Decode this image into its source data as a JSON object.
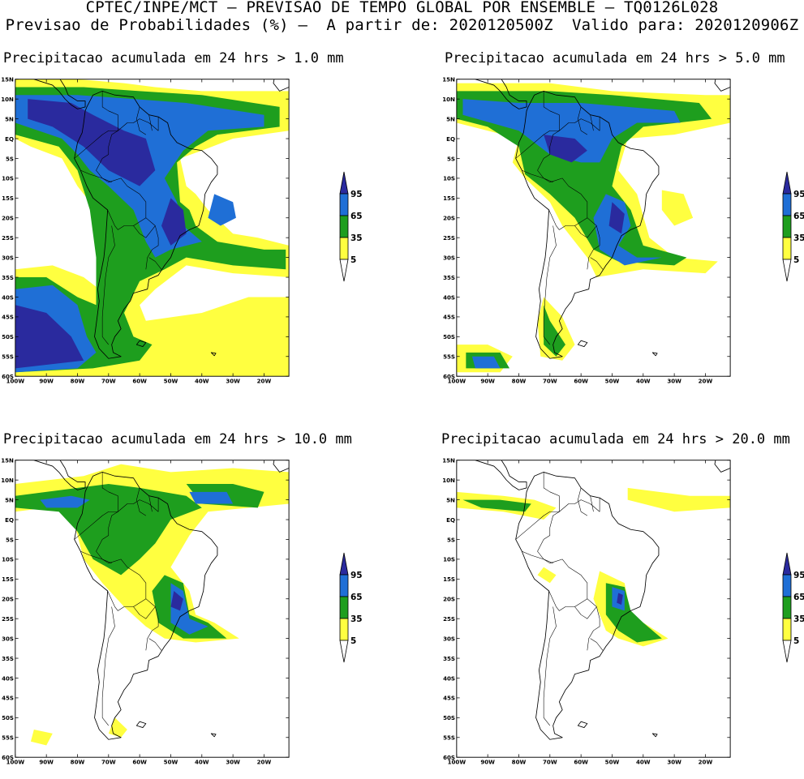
{
  "header": {
    "line1": "CPTEC/INPE/MCT — PREVISAO DE TEMPO GLOBAL POR ENSEMBLE — TQ0126L028",
    "line2": "Previsao de Probabilidades (%) —  A partir de: 2020120500Z  Valido para: 2020120906Z"
  },
  "axes": {
    "lon_labels": [
      "100W",
      "90W",
      "80W",
      "70W",
      "60W",
      "50W",
      "40W",
      "30W",
      "20W"
    ],
    "lat_labels": [
      "15N",
      "10N",
      "5N",
      "EQ",
      "5S",
      "10S",
      "15S",
      "20S",
      "25S",
      "30S",
      "35S",
      "40S",
      "45S",
      "50S",
      "55S",
      "60S"
    ]
  },
  "legend": {
    "labels": [
      "95",
      "65",
      "35",
      "5"
    ],
    "colors": {
      "c5": "#ffff40",
      "c35": "#1e9e1e",
      "c65": "#1f6fd6",
      "c95": "#2a2a9e"
    }
  },
  "panels": [
    {
      "title": "Precipitacao acumulada em 24 hrs > 1.0 mm"
    },
    {
      "title": "Precipitacao acumulada em 24 hrs > 5.0 mm"
    },
    {
      "title": "Precipitacao acumulada em 24 hrs > 10.0 mm"
    },
    {
      "title": "Precipitacao acumulada em 24 hrs > 20.0 mm"
    }
  ]
}
